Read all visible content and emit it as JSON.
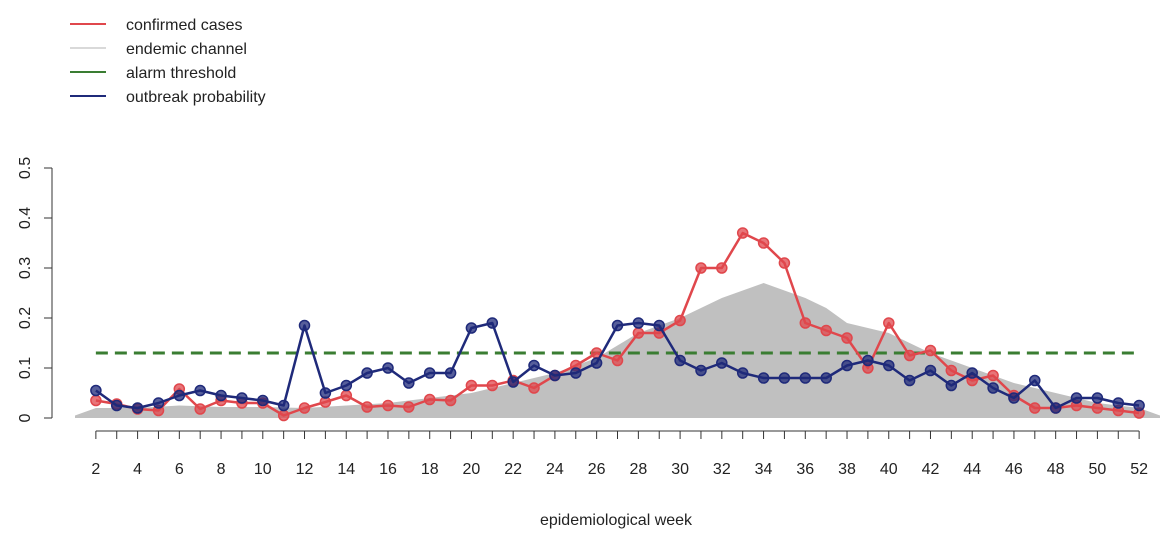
{
  "chart_data": {
    "type": "line",
    "xlabel": "epidemiological week",
    "ylabel": "",
    "x": [
      2,
      3,
      4,
      5,
      6,
      7,
      8,
      9,
      10,
      11,
      12,
      13,
      14,
      15,
      16,
      17,
      18,
      19,
      20,
      21,
      22,
      23,
      24,
      25,
      26,
      27,
      28,
      29,
      30,
      31,
      32,
      33,
      34,
      35,
      36,
      37,
      38,
      39,
      40,
      41,
      42,
      43,
      44,
      45,
      46,
      47,
      48,
      49,
      50,
      51,
      52
    ],
    "xlim": [
      1,
      53
    ],
    "ylim": [
      0,
      0.5
    ],
    "x_ticks": [
      2,
      4,
      6,
      8,
      10,
      12,
      14,
      16,
      18,
      20,
      22,
      24,
      26,
      28,
      30,
      32,
      34,
      36,
      38,
      40,
      42,
      44,
      46,
      48,
      50,
      52
    ],
    "y_ticks": [
      0,
      0.1,
      0.2,
      0.3,
      0.4,
      0.5
    ],
    "y_tick_labels": [
      "0",
      "0.1",
      "0.2",
      "0.3",
      "0.4",
      "0.5"
    ],
    "legend_position": "top-left",
    "series": [
      {
        "name": "endemic channel",
        "kind": "area",
        "color": "#c0c0c0",
        "x": [
          1,
          2,
          4,
          6,
          8,
          10,
          12,
          14,
          16,
          18,
          20,
          22,
          24,
          26,
          28,
          30,
          32,
          34,
          36,
          37,
          38,
          40,
          42,
          44,
          46,
          48,
          50,
          52,
          53
        ],
        "values": [
          0.005,
          0.02,
          0.02,
          0.025,
          0.022,
          0.022,
          0.02,
          0.025,
          0.03,
          0.04,
          0.05,
          0.07,
          0.09,
          0.12,
          0.17,
          0.2,
          0.24,
          0.27,
          0.24,
          0.22,
          0.19,
          0.17,
          0.13,
          0.1,
          0.07,
          0.05,
          0.03,
          0.02,
          0.005
        ]
      },
      {
        "name": "alarm threshold",
        "kind": "hline",
        "color": "#3a7d32",
        "value": 0.13
      },
      {
        "name": "confirmed cases",
        "kind": "line",
        "color": "#e0474c",
        "values": [
          0.035,
          0.028,
          0.018,
          0.015,
          0.058,
          0.018,
          0.035,
          0.03,
          0.03,
          0.005,
          0.02,
          0.032,
          0.045,
          0.022,
          0.025,
          0.022,
          0.037,
          0.035,
          0.065,
          0.065,
          0.075,
          0.06,
          0.085,
          0.105,
          0.13,
          0.115,
          0.17,
          0.17,
          0.195,
          0.3,
          0.3,
          0.37,
          0.35,
          0.31,
          0.19,
          0.175,
          0.16,
          0.1,
          0.19,
          0.125,
          0.135,
          0.095,
          0.075,
          0.085,
          0.045,
          0.02,
          0.02,
          0.025,
          0.02,
          0.015,
          0.01
        ]
      },
      {
        "name": "outbreak probability",
        "kind": "line",
        "color": "#1f2a7a",
        "values": [
          0.055,
          0.025,
          0.02,
          0.03,
          0.045,
          0.055,
          0.045,
          0.04,
          0.035,
          0.025,
          0.185,
          0.05,
          0.065,
          0.09,
          0.1,
          0.07,
          0.09,
          0.09,
          0.18,
          0.19,
          0.072,
          0.105,
          0.085,
          0.09,
          0.11,
          0.185,
          0.19,
          0.185,
          0.115,
          0.095,
          0.11,
          0.09,
          0.08,
          0.08,
          0.08,
          0.08,
          0.105,
          0.115,
          0.105,
          0.075,
          0.095,
          0.065,
          0.09,
          0.06,
          0.04,
          0.075,
          0.02,
          0.04,
          0.04,
          0.03,
          0.025
        ]
      }
    ],
    "legend": [
      {
        "label": "confirmed cases",
        "color": "#e0474c"
      },
      {
        "label": "endemic channel",
        "color": "#d9d9d9"
      },
      {
        "label": "alarm threshold",
        "color": "#3a7d32"
      },
      {
        "label": "outbreak probability",
        "color": "#1f2a7a"
      }
    ]
  }
}
